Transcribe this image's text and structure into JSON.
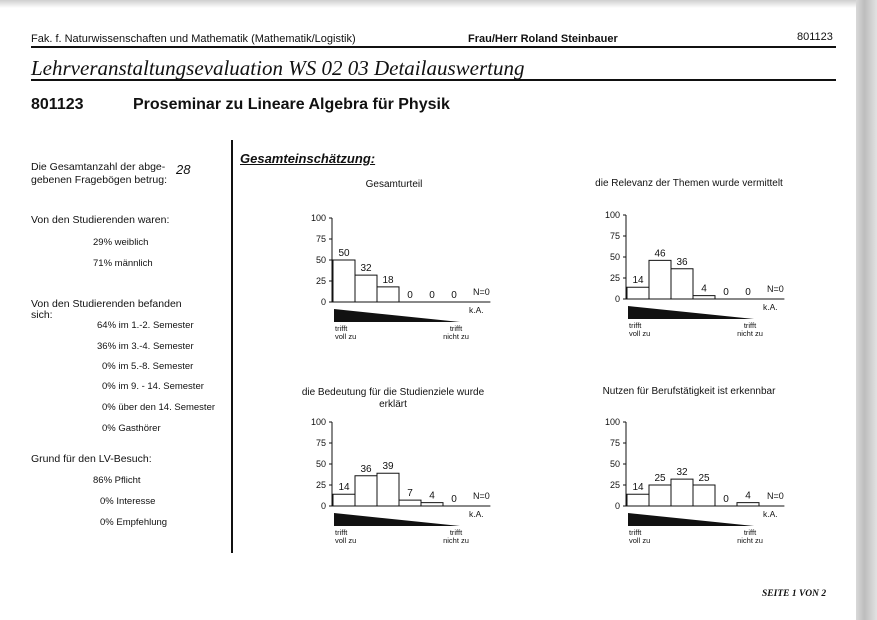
{
  "header": {
    "faculty": "Fak. f. Naturwissenschaften und Mathematik (Mathematik/Logistik)",
    "lecturer": "Frau/Herr Roland Steinbauer",
    "code": "801123"
  },
  "title": "Lehrveranstaltungsevaluation WS 02 03 Detailauswertung",
  "course": {
    "number": "801123",
    "name": "Proseminar zu Lineare Algebra für Physik"
  },
  "sidebar": {
    "total_label_1": "Die Gesamtanzahl der abge-",
    "total_label_2": "gebenen Fragebögen betrug:",
    "total_value": "28",
    "students_heading": "Von den Studierenden waren:",
    "gender": [
      "29%  weiblich",
      "71%  männlich"
    ],
    "semester_heading_1": "Von den Studierenden befanden",
    "semester_heading_2": "sich:",
    "semesters": [
      "64% im 1.-2. Semester",
      "36% im 3.-4. Semester",
      "0% im 5.-8. Semester",
      "0% im 9. - 14. Semester",
      "0% über den 14. Semester",
      "0% Gasthörer"
    ],
    "reason_heading": "Grund für den LV-Besuch:",
    "reasons": [
      "86% Pflicht",
      "0% Interesse",
      "0% Empfehlung"
    ]
  },
  "section_title": "Gesamteinschätzung:",
  "scale": {
    "left_1": "trifft",
    "left_2": "voll zu",
    "right_1": "trifft",
    "right_2": "nicht zu",
    "na": "k.A."
  },
  "chart_data": [
    {
      "type": "bar",
      "title": "Gesamturteil",
      "title2": "",
      "values": [
        50,
        32,
        18,
        0,
        0,
        0
      ],
      "n_label": "N=0",
      "yticks": [
        "100",
        "75",
        "50",
        "25",
        "0"
      ],
      "ylim": [
        0,
        100
      ]
    },
    {
      "type": "bar",
      "title": "die Relevanz der Themen wurde vermittelt",
      "title2": "",
      "values": [
        14,
        46,
        36,
        4,
        0,
        0
      ],
      "n_label": "N=0",
      "yticks": [
        "100",
        "75",
        "50",
        "25",
        "0"
      ],
      "ylim": [
        0,
        100
      ]
    },
    {
      "type": "bar",
      "title": "die Bedeutung für die Studienziele wurde",
      "title2": "erklärt",
      "values": [
        14,
        36,
        39,
        7,
        4,
        0
      ],
      "n_label": "N=0",
      "yticks": [
        "100",
        "75",
        "50",
        "25",
        "0"
      ],
      "ylim": [
        0,
        100
      ]
    },
    {
      "type": "bar",
      "title": "Nutzen für Berufstätigkeit ist erkennbar",
      "title2": "",
      "values": [
        14,
        25,
        32,
        25,
        0,
        4
      ],
      "n_label": "N=0",
      "yticks": [
        "100",
        "75",
        "50",
        "25",
        "0"
      ],
      "ylim": [
        0,
        100
      ]
    }
  ],
  "footer": "SEITE 1 VON 2"
}
